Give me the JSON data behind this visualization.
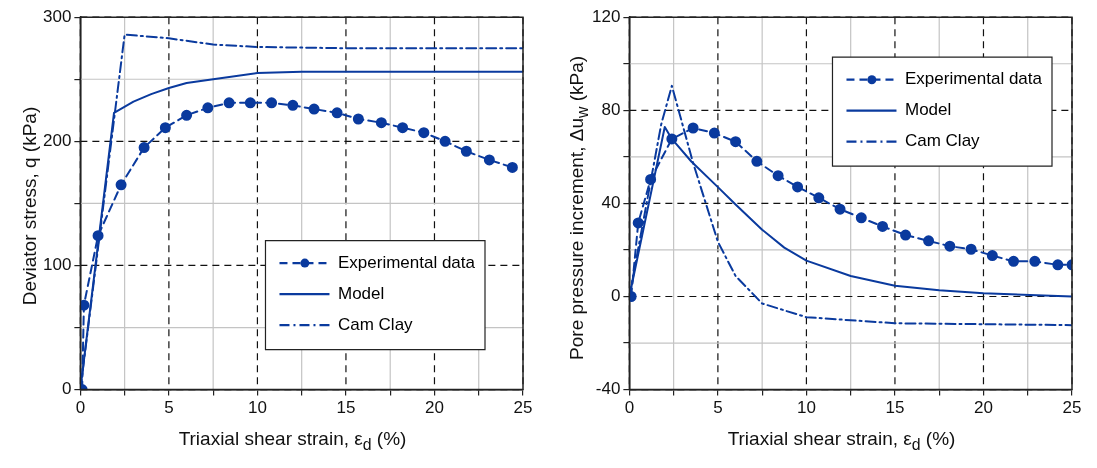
{
  "chart_data": [
    {
      "type": "line",
      "xlabel": "Triaxial shear strain, ε$_{d}$ (%)",
      "ylabel": "Deviator stress, q (kPa)",
      "xlim": [
        0,
        25
      ],
      "ylim": [
        0,
        300
      ],
      "xticks": [
        0,
        {
          "value": 2.5,
          "label": null
        },
        5,
        {
          "value": 7.5,
          "label": null
        },
        10,
        {
          "value": 12.5,
          "label": null
        },
        15,
        {
          "value": 17.5,
          "label": null
        },
        20,
        {
          "value": 22.5,
          "label": null
        },
        25
      ],
      "yticks": [
        0,
        {
          "value": 50,
          "label": null
        },
        100,
        {
          "value": 150,
          "label": null
        },
        200,
        {
          "value": 250,
          "label": null
        },
        300
      ],
      "grid": true,
      "legend": "bottom right",
      "series": [
        {
          "name": "Experimental data",
          "color": "#0a3a9e",
          "marker": "circle",
          "line_style": "dashed",
          "x": [
            0.1,
            0.2,
            1.0,
            2.3,
            3.6,
            4.8,
            6.0,
            7.2,
            8.4,
            9.6,
            10.8,
            12.0,
            13.2,
            14.5,
            15.7,
            17.0,
            18.2,
            19.4,
            20.6,
            21.8,
            23.1,
            24.4
          ],
          "values": [
            0,
            68,
            124,
            165,
            195,
            211,
            221,
            227,
            231,
            231,
            231,
            229,
            226,
            223,
            218,
            215,
            211,
            207,
            200,
            192,
            185,
            179
          ]
        },
        {
          "name": "Model",
          "color": "#0a3a9e",
          "marker": "none",
          "line_style": "solid",
          "x": [
            0,
            1.9,
            3,
            4,
            5,
            6,
            7.5,
            10,
            12.5,
            15,
            20,
            25
          ],
          "values": [
            0,
            223,
            232,
            238,
            243,
            247,
            250,
            255,
            256,
            256,
            256,
            256
          ]
        },
        {
          "name": "Cam Clay",
          "color": "#0a3a9e",
          "marker": "none",
          "line_style": "dashdot",
          "x": [
            0,
            2.5,
            5,
            7.5,
            10,
            15,
            20,
            25
          ],
          "values": [
            0,
            286,
            283,
            278,
            276,
            275,
            275,
            275
          ]
        }
      ]
    },
    {
      "type": "line",
      "xlabel": "Triaxial shear strain, ε$_{d}$ (%)",
      "ylabel": "Pore pressure increment, Δu$_{w}$ (kPa)",
      "xlim": [
        0,
        25
      ],
      "ylim": [
        -40,
        120
      ],
      "xticks": [
        0,
        {
          "value": 2.5,
          "label": null
        },
        5,
        {
          "value": 7.5,
          "label": null
        },
        10,
        {
          "value": 12.5,
          "label": null
        },
        15,
        {
          "value": 17.5,
          "label": null
        },
        20,
        {
          "value": 22.5,
          "label": null
        },
        25
      ],
      "yticks": [
        -40,
        {
          "value": -20,
          "label": null
        },
        0,
        {
          "value": 20,
          "label": null
        },
        40,
        {
          "value": 60,
          "label": null
        },
        80,
        {
          "value": 100,
          "label": null
        },
        120
      ],
      "grid": true,
      "legend": "top right",
      "series": [
        {
          "name": "Experimental data",
          "color": "#0a3a9e",
          "marker": "circle",
          "line_style": "dashed",
          "x": [
            0.1,
            0.5,
            1.2,
            2.4,
            3.6,
            4.8,
            6.0,
            7.2,
            8.4,
            9.5,
            10.7,
            11.9,
            13.1,
            14.3,
            15.6,
            16.9,
            18.1,
            19.3,
            20.5,
            21.7,
            22.9,
            24.2,
            25.0
          ],
          "values": [
            0,
            31.6,
            50.3,
            67.7,
            72.4,
            70.2,
            66.5,
            58.1,
            51.9,
            47.1,
            42.4,
            37.5,
            33.8,
            30.1,
            26.4,
            23.9,
            21.6,
            20.3,
            17.6,
            15.1,
            15.1,
            13.6,
            13.6
          ]
        },
        {
          "name": "Model",
          "color": "#0a3a9e",
          "marker": "none",
          "line_style": "solid",
          "x": [
            0,
            2.0,
            2.4,
            3.5,
            5,
            6,
            7.5,
            8.75,
            10,
            12.5,
            15,
            17.5,
            20,
            25
          ],
          "values": [
            0,
            72.8,
            67.7,
            58,
            47,
            39.5,
            28.7,
            21,
            15.4,
            8.8,
            4.6,
            2.7,
            1.4,
            0
          ]
        },
        {
          "name": "Cam Clay",
          "color": "#0a3a9e",
          "marker": "none",
          "line_style": "dashdot",
          "x": [
            0,
            1.8,
            2.4,
            3.6,
            5,
            6,
            7.5,
            10,
            15,
            25
          ],
          "values": [
            0,
            74,
            90.5,
            57.4,
            23.5,
            8.8,
            -3,
            -8.9,
            -11.5,
            -12.3
          ]
        }
      ]
    }
  ]
}
